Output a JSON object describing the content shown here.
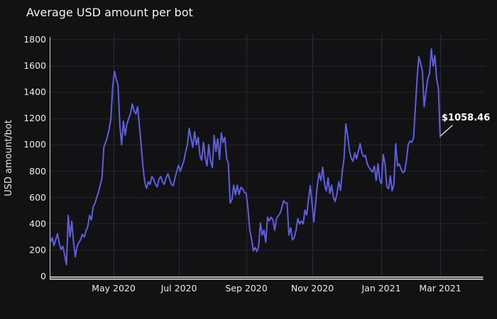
{
  "header": {
    "title": "Average USD amount per bot"
  },
  "colors": {
    "background": "#121215",
    "line": "#5e5ee0",
    "grid_horizontal": "#24242b",
    "grid_vertical": "#2a2d35",
    "axis_x": "#ededed",
    "axis_y": "#c6c6c6",
    "text": "#eaeaea",
    "annotation_text": "#ffffff",
    "annotation_line": "#e0e0e0"
  },
  "chart_data": {
    "type": "line",
    "title": "Average USD amount per bot",
    "xlabel": "",
    "ylabel": "USD amount/bot",
    "ylim": [
      0,
      1800
    ],
    "y_ticks": [
      0,
      200,
      400,
      600,
      800,
      1000,
      1200,
      1400,
      1600,
      1800
    ],
    "x_tick_labels": [
      "May 2020",
      "Jul 2020",
      "Sep 2020",
      "Nov 2020",
      "Jan 2021",
      "Mar 2021"
    ],
    "x_range": [
      "2020-03-03",
      "2021-03-01"
    ],
    "x_note": "values are evenly spaced samples (~1.7 days apart) between x_range start and end",
    "grid": true,
    "legend": false,
    "series": [
      {
        "name": "Average USD amount per bot",
        "color": "#5e5ee0",
        "values": [
          260,
          295,
          235,
          280,
          325,
          250,
          205,
          230,
          160,
          90,
          465,
          300,
          420,
          260,
          150,
          230,
          260,
          280,
          320,
          300,
          345,
          380,
          465,
          430,
          530,
          555,
          600,
          640,
          695,
          750,
          980,
          1020,
          1060,
          1120,
          1200,
          1440,
          1560,
          1500,
          1450,
          1150,
          1000,
          1180,
          1075,
          1160,
          1200,
          1240,
          1312,
          1260,
          1236,
          1290,
          1150,
          1000,
          830,
          720,
          670,
          720,
          700,
          760,
          740,
          700,
          680,
          740,
          760,
          720,
          700,
          750,
          780,
          740,
          700,
          690,
          750,
          800,
          845,
          800,
          840,
          880,
          950,
          1000,
          1127,
          1050,
          983,
          1100,
          1000,
          1057,
          920,
          884,
          1019,
          900,
          840,
          1003,
          880,
          829,
          1073,
          950,
          1046,
          890,
          1091,
          1019,
          1057,
          900,
          856,
          558,
          585,
          694,
          620,
          694,
          623,
          678,
          667,
          640,
          630,
          515,
          350,
          287,
          195,
          220,
          190,
          230,
          406,
          315,
          352,
          260,
          450,
          423,
          450,
          430,
          352,
          440,
          460,
          480,
          520,
          576,
          560,
          557,
          315,
          370,
          278,
          296,
          350,
          440,
          400,
          420,
          400,
          504,
          468,
          585,
          690,
          560,
          415,
          560,
          694,
          785,
          730,
          830,
          700,
          650,
          750,
          630,
          694,
          600,
          570,
          630,
          720,
          655,
          800,
          900,
          1160,
          1073,
          955,
          900,
          875,
          938,
          895,
          950,
          1010,
          940,
          911,
          920,
          856,
          830,
          810,
          793,
          840,
          730,
          856,
          737,
          704,
          927,
          856,
          683,
          667,
          764,
          650,
          700,
          1010,
          840,
          856,
          818,
          790,
          800,
          880,
          1000,
          1030,
          1020,
          1050,
          1270,
          1500,
          1670,
          1620,
          1560,
          1290,
          1400,
          1500,
          1545,
          1730,
          1600,
          1680,
          1500,
          1430,
          1058.46
        ]
      }
    ],
    "annotation": {
      "label": "$1058.46",
      "value": 1058.46,
      "position": "last-point"
    }
  }
}
